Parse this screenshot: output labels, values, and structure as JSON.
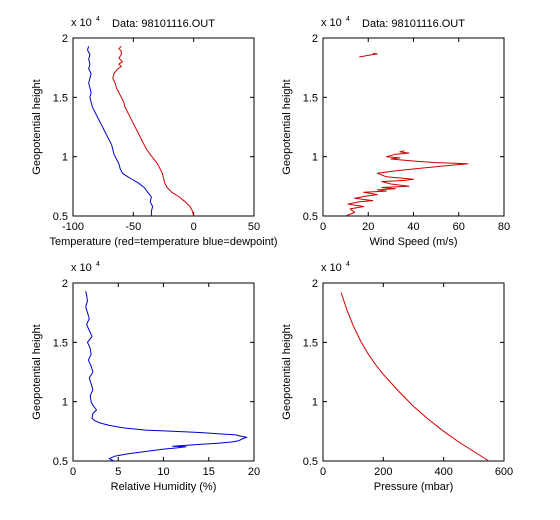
{
  "chart_data": [
    {
      "id": "temperature",
      "type": "line",
      "title": "Data: 98101116.OUT",
      "xlabel": "Temperature (red=temperature blue=dewpoint)",
      "ylabel": "Geopotential height",
      "y_exponent": "x 10",
      "y_exponent_power": "4",
      "xlim": [
        -100,
        50
      ],
      "ylim": [
        0.5,
        2
      ],
      "xticks": [
        "-100",
        "-50",
        "0",
        "50"
      ],
      "yticks": [
        "0.5",
        "1",
        "1.5",
        "2"
      ],
      "series": [
        {
          "color": "#cc0000",
          "points": [
            [
              0,
              0.5
            ],
            [
              -1,
              0.54
            ],
            [
              -3,
              0.58
            ],
            [
              -7,
              0.62
            ],
            [
              -12,
              0.66
            ],
            [
              -18,
              0.7
            ],
            [
              -22,
              0.74
            ],
            [
              -24,
              0.78
            ],
            [
              -25,
              0.82
            ],
            [
              -26,
              0.86
            ],
            [
              -28,
              0.9
            ],
            [
              -30,
              0.94
            ],
            [
              -33,
              0.98
            ],
            [
              -36,
              1.02
            ],
            [
              -39,
              1.06
            ],
            [
              -41,
              1.1
            ],
            [
              -43,
              1.14
            ],
            [
              -45,
              1.18
            ],
            [
              -47,
              1.22
            ],
            [
              -49,
              1.26
            ],
            [
              -51,
              1.3
            ],
            [
              -53,
              1.34
            ],
            [
              -55,
              1.38
            ],
            [
              -57,
              1.42
            ],
            [
              -58,
              1.46
            ],
            [
              -60,
              1.5
            ],
            [
              -62,
              1.54
            ],
            [
              -64,
              1.58
            ],
            [
              -65,
              1.62
            ],
            [
              -67,
              1.66
            ],
            [
              -66,
              1.7
            ],
            [
              -63,
              1.74
            ],
            [
              -60,
              1.76
            ],
            [
              -62,
              1.78
            ],
            [
              -59,
              1.8
            ],
            [
              -62,
              1.83
            ],
            [
              -60,
              1.86
            ],
            [
              -60,
              1.89
            ],
            [
              -62,
              1.91
            ],
            [
              -60,
              1.93
            ]
          ]
        },
        {
          "color": "#0000cc",
          "points": [
            [
              -35,
              0.5
            ],
            [
              -35,
              0.54
            ],
            [
              -34,
              0.58
            ],
            [
              -36,
              0.62
            ],
            [
              -35,
              0.66
            ],
            [
              -38,
              0.7
            ],
            [
              -41,
              0.74
            ],
            [
              -46,
              0.78
            ],
            [
              -53,
              0.82
            ],
            [
              -59,
              0.86
            ],
            [
              -61,
              0.9
            ],
            [
              -62,
              0.94
            ],
            [
              -64,
              0.98
            ],
            [
              -66,
              1.02
            ],
            [
              -67,
              1.06
            ],
            [
              -68,
              1.1
            ],
            [
              -70,
              1.14
            ],
            [
              -72,
              1.18
            ],
            [
              -74,
              1.22
            ],
            [
              -76,
              1.26
            ],
            [
              -78,
              1.3
            ],
            [
              -80,
              1.34
            ],
            [
              -82,
              1.38
            ],
            [
              -84,
              1.42
            ],
            [
              -85,
              1.46
            ],
            [
              -86,
              1.5
            ],
            [
              -85,
              1.54
            ],
            [
              -86,
              1.58
            ],
            [
              -87,
              1.62
            ],
            [
              -86,
              1.66
            ],
            [
              -85,
              1.7
            ],
            [
              -87,
              1.74
            ],
            [
              -86,
              1.78
            ],
            [
              -87,
              1.82
            ],
            [
              -86,
              1.86
            ],
            [
              -88,
              1.9
            ],
            [
              -87,
              1.93
            ]
          ]
        }
      ]
    },
    {
      "id": "wind",
      "type": "line",
      "title": "Data: 98101116.OUT",
      "xlabel": "Wind Speed (m/s)",
      "ylabel": "Geopotential height",
      "y_exponent": "x 10",
      "y_exponent_power": "4",
      "xlim": [
        0,
        80
      ],
      "ylim": [
        0.5,
        2
      ],
      "xticks": [
        "0",
        "20",
        "40",
        "60",
        "80"
      ],
      "yticks": [
        "0.5",
        "1",
        "1.5",
        "2"
      ],
      "series": [
        {
          "color": "#cc0000",
          "points": [
            [
              10,
              0.5
            ],
            [
              14,
              0.53
            ],
            [
              12,
              0.56
            ],
            [
              18,
              0.58
            ],
            [
              11,
              0.6
            ],
            [
              16,
              0.62
            ],
            [
              22,
              0.63
            ],
            [
              14,
              0.65
            ],
            [
              20,
              0.67
            ],
            [
              24,
              0.68
            ],
            [
              18,
              0.7
            ],
            [
              28,
              0.71
            ],
            [
              24,
              0.72
            ],
            [
              32,
              0.73
            ],
            [
              26,
              0.74
            ],
            [
              38,
              0.75
            ],
            [
              30,
              0.77
            ],
            [
              26,
              0.79
            ],
            [
              36,
              0.8
            ],
            [
              40,
              0.81
            ],
            [
              28,
              0.83
            ],
            [
              24,
              0.86
            ],
            [
              32,
              0.88
            ],
            [
              42,
              0.9
            ],
            [
              52,
              0.92
            ],
            [
              64,
              0.94
            ],
            [
              50,
              0.95
            ],
            [
              42,
              0.96
            ],
            [
              36,
              0.97
            ],
            [
              30,
              0.98
            ],
            [
              34,
              0.99
            ],
            [
              28,
              1.0
            ],
            [
              32,
              1.02
            ],
            [
              38,
              1.03
            ],
            [
              34,
              1.04
            ],
            [
              36,
              1.05
            ]
          ]
        },
        {
          "color": "#cc0000",
          "points": [
            [
              16,
              1.84
            ],
            [
              19,
              1.85
            ],
            [
              22,
              1.86
            ],
            [
              24,
              1.865
            ],
            [
              22,
              1.87
            ]
          ]
        }
      ]
    },
    {
      "id": "humidity",
      "type": "line",
      "title": "",
      "xlabel": "Relative Humidity (%)",
      "ylabel": "Geopotential height",
      "y_exponent": "x 10",
      "y_exponent_power": "4",
      "xlim": [
        0,
        20
      ],
      "ylim": [
        0.5,
        2
      ],
      "xticks": [
        "0",
        "5",
        "10",
        "15",
        "20"
      ],
      "yticks": [
        "0.5",
        "1",
        "1.5",
        "2"
      ],
      "series": [
        {
          "color": "#0000cc",
          "points": [
            [
              4.5,
              0.5
            ],
            [
              4,
              0.52
            ],
            [
              4.6,
              0.54
            ],
            [
              6,
              0.56
            ],
            [
              8,
              0.58
            ],
            [
              10,
              0.6
            ],
            [
              11.5,
              0.61
            ],
            [
              12.5,
              0.62
            ],
            [
              11,
              0.625
            ],
            [
              12,
              0.63
            ],
            [
              14,
              0.64
            ],
            [
              16,
              0.65
            ],
            [
              17.5,
              0.66
            ],
            [
              18.3,
              0.67
            ],
            [
              18.8,
              0.69
            ],
            [
              19.2,
              0.7
            ],
            [
              18.5,
              0.71
            ],
            [
              18,
              0.72
            ],
            [
              16,
              0.73
            ],
            [
              14,
              0.74
            ],
            [
              11,
              0.75
            ],
            [
              8,
              0.76
            ],
            [
              5.5,
              0.78
            ],
            [
              4,
              0.8
            ],
            [
              3,
              0.82
            ],
            [
              2.4,
              0.84
            ],
            [
              2.1,
              0.86
            ],
            [
              2.2,
              0.9
            ],
            [
              2.6,
              0.93
            ],
            [
              2.2,
              0.97
            ],
            [
              2.0,
              1.0
            ],
            [
              1.9,
              1.05
            ],
            [
              2.2,
              1.1
            ],
            [
              2.0,
              1.15
            ],
            [
              1.8,
              1.2
            ],
            [
              2.2,
              1.25
            ],
            [
              2.0,
              1.3
            ],
            [
              1.7,
              1.35
            ],
            [
              2.0,
              1.4
            ],
            [
              1.9,
              1.45
            ],
            [
              1.6,
              1.5
            ],
            [
              2.1,
              1.55
            ],
            [
              1.8,
              1.6
            ],
            [
              1.5,
              1.65
            ],
            [
              1.8,
              1.7
            ],
            [
              1.6,
              1.75
            ],
            [
              1.4,
              1.8
            ],
            [
              1.6,
              1.85
            ],
            [
              1.5,
              1.9
            ],
            [
              1.4,
              1.93
            ]
          ]
        }
      ]
    },
    {
      "id": "pressure",
      "type": "line",
      "title": "",
      "xlabel": "Pressure (mbar)",
      "ylabel": "Geopotential height",
      "y_exponent": "x 10",
      "y_exponent_power": "4",
      "xlim": [
        0,
        600
      ],
      "ylim": [
        0.5,
        2
      ],
      "xticks": [
        "0",
        "200",
        "400",
        "600"
      ],
      "yticks": [
        "0.5",
        "1",
        "1.5",
        "2"
      ],
      "series": [
        {
          "color": "#cc0000",
          "points": [
            [
              550,
              0.5
            ],
            [
              500,
              0.58
            ],
            [
              450,
              0.66
            ],
            [
              400,
              0.75
            ],
            [
              350,
              0.85
            ],
            [
              300,
              0.96
            ],
            [
              250,
              1.09
            ],
            [
              200,
              1.23
            ],
            [
              175,
              1.31
            ],
            [
              150,
              1.4
            ],
            [
              125,
              1.51
            ],
            [
              100,
              1.64
            ],
            [
              80,
              1.77
            ],
            [
              60,
              1.92
            ]
          ]
        }
      ]
    }
  ]
}
